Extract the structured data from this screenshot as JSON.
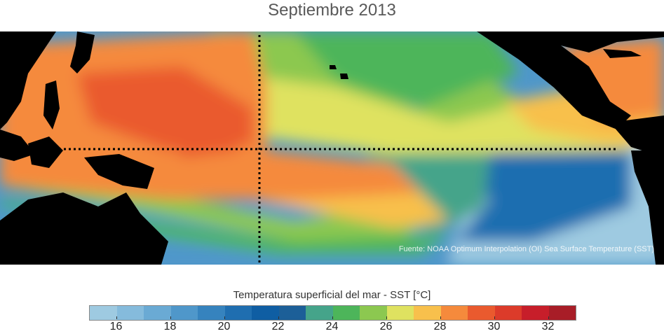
{
  "title": "Septiembre 2013",
  "source": "Fuente: NOAA Optimum Interpolation (OI) Sea Surface Temperature (SST)",
  "colorbar": {
    "title": "Temperatura superficial del mar - SST  [°C]",
    "min": 15,
    "max": 33,
    "ticks": [
      "16",
      "18",
      "20",
      "22",
      "24",
      "26",
      "28",
      "30",
      "32"
    ],
    "tick_values": [
      16,
      18,
      20,
      22,
      24,
      26,
      28,
      30,
      32
    ],
    "colors": [
      "#9ecae1",
      "#85bbdc",
      "#6aaad4",
      "#4f97ca",
      "#3683be",
      "#1f6eb0",
      "#0f5ea3",
      "#1c5f98",
      "#45a48a",
      "#4db55a",
      "#8cc850",
      "#dfe260",
      "#f8c04c",
      "#f58a3c",
      "#ea5a2e",
      "#dc3b2a",
      "#c71e2a",
      "#a81d27"
    ]
  },
  "map_colors": {
    "land": "#000000",
    "warm_pool": "#ea5a2e",
    "warm": "#f58a3c",
    "warm_light": "#f8c04c",
    "mid": "#dfe260",
    "green": "#8cc850",
    "green_dark": "#4db55a",
    "teal": "#45a48a",
    "cold": "#1f6eb0",
    "cool": "#4f97ca",
    "cool_light": "#9ecae1"
  }
}
